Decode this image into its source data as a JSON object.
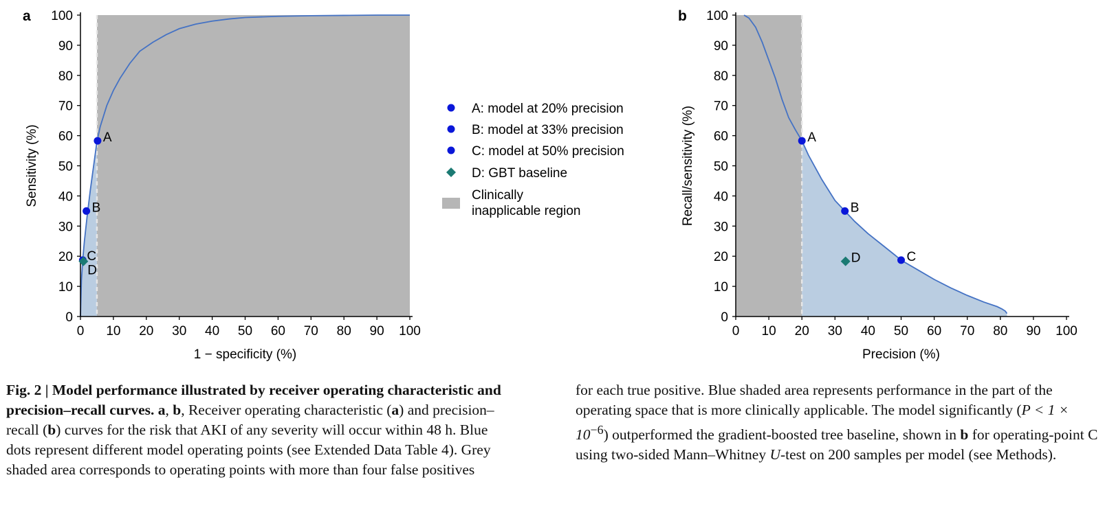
{
  "chart_data": [
    {
      "panel": "a",
      "type": "line",
      "xlabel": "1 − specificity (%)",
      "ylabel": "Sensitivity (%)",
      "xlim": [
        0,
        100
      ],
      "ylim": [
        0,
        100
      ],
      "xticks": [
        "0",
        "10",
        "20",
        "30",
        "40",
        "50",
        "60",
        "70",
        "80",
        "90",
        "100"
      ],
      "yticks": [
        "0",
        "10",
        "20",
        "30",
        "40",
        "50",
        "60",
        "70",
        "80",
        "90",
        "100"
      ],
      "shaded_region": {
        "type": "grey",
        "x": [
          5,
          100
        ]
      },
      "threshold_line_x": 5,
      "curve": {
        "x": [
          0,
          0.3,
          0.7,
          1.2,
          2,
          3,
          4,
          5,
          6,
          8,
          10,
          12,
          15,
          18,
          22,
          26,
          30,
          35,
          40,
          45,
          50,
          60,
          70,
          80,
          90,
          100
        ],
        "y": [
          0,
          12,
          19,
          25,
          33,
          42,
          50,
          58,
          63,
          70,
          75,
          79,
          84,
          88,
          91,
          93.5,
          95.5,
          97,
          98,
          98.7,
          99.2,
          99.6,
          99.8,
          99.9,
          100,
          100
        ]
      },
      "points": [
        {
          "label": "A",
          "x": 5.2,
          "y": 58.3,
          "marker": "circle"
        },
        {
          "label": "B",
          "x": 1.8,
          "y": 35,
          "marker": "circle"
        },
        {
          "label": "C",
          "x": 0.7,
          "y": 18.7,
          "marker": "circle"
        },
        {
          "label": "D",
          "x": 0.9,
          "y": 18.3,
          "marker": "diamond"
        }
      ]
    },
    {
      "panel": "b",
      "type": "line",
      "xlabel": "Precision (%)",
      "ylabel": "Recall/sensitivity (%)",
      "xlim": [
        0,
        100
      ],
      "ylim": [
        0,
        100
      ],
      "xticks": [
        "0",
        "10",
        "20",
        "30",
        "40",
        "50",
        "60",
        "70",
        "80",
        "90",
        "100"
      ],
      "yticks": [
        "0",
        "10",
        "20",
        "30",
        "40",
        "50",
        "60",
        "70",
        "80",
        "90",
        "100"
      ],
      "shaded_region": {
        "type": "grey",
        "x": [
          0,
          20
        ]
      },
      "threshold_line_x": 20,
      "curve": {
        "x": [
          2.5,
          4,
          6,
          8,
          10,
          12,
          14,
          16,
          18,
          20,
          22,
          24,
          26,
          28,
          30,
          33,
          36,
          40,
          44,
          48,
          50,
          55,
          60,
          65,
          70,
          75,
          79,
          80.5,
          81.5,
          82
        ],
        "y": [
          100,
          99,
          96,
          91,
          85,
          79,
          72,
          66,
          62,
          58.3,
          53.5,
          49.5,
          45.5,
          42,
          38.5,
          35,
          31.5,
          27.5,
          24,
          20.5,
          18.7,
          15.5,
          12.3,
          9.5,
          7,
          4.8,
          3.3,
          2.5,
          1.8,
          1
        ]
      },
      "points": [
        {
          "label": "A",
          "x": 20,
          "y": 58.3,
          "marker": "circle"
        },
        {
          "label": "B",
          "x": 33,
          "y": 35,
          "marker": "circle"
        },
        {
          "label": "C",
          "x": 50,
          "y": 18.7,
          "marker": "circle"
        },
        {
          "label": "D",
          "x": 33.2,
          "y": 18.3,
          "marker": "diamond"
        }
      ]
    }
  ],
  "legend": {
    "items": [
      {
        "label": "A: model at 20% precision",
        "marker": "circle"
      },
      {
        "label": "B: model at 33% precision",
        "marker": "circle"
      },
      {
        "label": "C: model at 50% precision",
        "marker": "circle"
      },
      {
        "label": "D: GBT baseline",
        "marker": "diamond"
      },
      {
        "label_line1": "Clinically",
        "label_line2": "inapplicable region",
        "marker": "grey-box"
      }
    ]
  },
  "colors": {
    "grey_region": "#b6b6b6",
    "blue_shade": "#bacde1",
    "curve": "#4472c4",
    "point": "#0a17d9",
    "diamond": "#1b7a73",
    "threshold": "#e6e6e6"
  },
  "caption": {
    "fig_label": "Fig. 2 | ",
    "title": "Model performance illustrated by receiver operating characteristic and precision–recall curves.",
    "panels_a": "a",
    "comma1": ", ",
    "panels_b": "b",
    "text1": ", Receiver operating characteristic (",
    "a_ref": "a",
    "text2": ") and precision–recall (",
    "b_ref": "b",
    "text3": ") curves for the risk that AKI of any severity will occur within 48 h. Blue dots represent different model operating points (see Extended Data Table 4). Grey shaded area corresponds to operating points with more than four false positives",
    "text4": "for each true positive. Blue shaded area represents performance in the part of the operating space that is more clinically applicable. The model significantly (",
    "p_value": "P < 1 × 10",
    "p_exp": "−6",
    "text5": ") outperformed the gradient-boosted tree baseline, shown in ",
    "b_ref2": "b",
    "text6": " for operating-point C using two-sided Mann–Whitney ",
    "u_italic": "U",
    "text7": "-test on 200 samples per model (see Methods)."
  }
}
